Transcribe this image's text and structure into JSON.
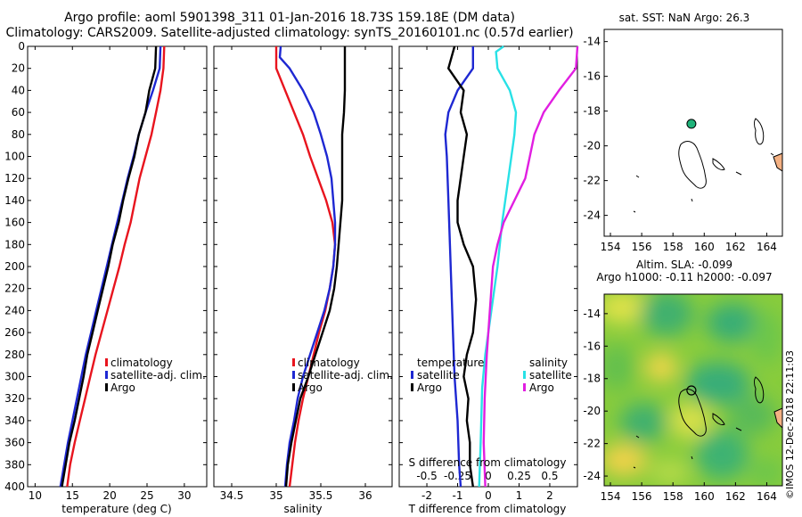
{
  "titles": {
    "line1": "Argo profile: aoml 5901398_311 01-Jan-2016 18.73S 159.18E (DM data)",
    "line2": "Climatology: CARS2009. Satellite-adjusted climatology: synTS_20160101.nc (0.57d earlier)"
  },
  "copyright": "©IMOS 12-Dec-2018 22:11:03",
  "colors": {
    "climatology": "#e8141e",
    "satellite": "#1e28d2",
    "argo": "#000000",
    "sat_salinity": "#28e1e6",
    "clim_salinity": "#e11ee1",
    "mark": "#1fb37a"
  },
  "chart_data": [
    {
      "id": "temperature",
      "type": "line",
      "xlabel": "temperature (deg C)",
      "ylabel": "",
      "xlim": [
        9,
        33
      ],
      "xticks": [
        10,
        15,
        20,
        25,
        30
      ],
      "ylim": [
        0,
        400
      ],
      "yticks": [
        0,
        20,
        40,
        60,
        80,
        100,
        120,
        140,
        160,
        180,
        200,
        220,
        240,
        260,
        280,
        300,
        320,
        340,
        360,
        380,
        400
      ],
      "legend": [
        "climatology",
        "satellite-adj. clim.",
        "Argo"
      ],
      "series": [
        {
          "name": "climatology",
          "color": "#e8141e",
          "points": [
            [
              27.3,
              0
            ],
            [
              27.2,
              20
            ],
            [
              26.8,
              40
            ],
            [
              26.2,
              60
            ],
            [
              25.6,
              80
            ],
            [
              24.8,
              100
            ],
            [
              24.0,
              120
            ],
            [
              23.4,
              140
            ],
            [
              22.8,
              160
            ],
            [
              22.0,
              180
            ],
            [
              21.3,
              200
            ],
            [
              20.5,
              220
            ],
            [
              19.7,
              240
            ],
            [
              18.9,
              260
            ],
            [
              18.1,
              280
            ],
            [
              17.4,
              300
            ],
            [
              16.7,
              320
            ],
            [
              16.0,
              340
            ],
            [
              15.3,
              360
            ],
            [
              14.7,
              380
            ],
            [
              14.3,
              400
            ]
          ]
        },
        {
          "name": "satellite-adj. clim.",
          "color": "#1e28d2",
          "points": [
            [
              26.8,
              0
            ],
            [
              26.7,
              20
            ],
            [
              25.8,
              40
            ],
            [
              24.8,
              60
            ],
            [
              23.9,
              80
            ],
            [
              23.2,
              100
            ],
            [
              22.4,
              120
            ],
            [
              21.7,
              140
            ],
            [
              21.0,
              160
            ],
            [
              20.3,
              180
            ],
            [
              19.6,
              200
            ],
            [
              18.9,
              220
            ],
            [
              18.2,
              240
            ],
            [
              17.5,
              260
            ],
            [
              16.8,
              280
            ],
            [
              16.2,
              300
            ],
            [
              15.6,
              320
            ],
            [
              15.0,
              340
            ],
            [
              14.4,
              360
            ],
            [
              13.9,
              380
            ],
            [
              13.4,
              400
            ]
          ]
        },
        {
          "name": "Argo",
          "color": "#000000",
          "points": [
            [
              26.2,
              0
            ],
            [
              26.1,
              20
            ],
            [
              25.3,
              40
            ],
            [
              24.8,
              60
            ],
            [
              23.9,
              80
            ],
            [
              23.3,
              100
            ],
            [
              22.5,
              120
            ],
            [
              21.8,
              140
            ],
            [
              21.2,
              160
            ],
            [
              20.4,
              180
            ],
            [
              19.8,
              200
            ],
            [
              19.1,
              220
            ],
            [
              18.4,
              240
            ],
            [
              17.7,
              260
            ],
            [
              17.0,
              280
            ],
            [
              16.5,
              300
            ],
            [
              15.9,
              320
            ],
            [
              15.3,
              340
            ],
            [
              14.6,
              360
            ],
            [
              14.1,
              380
            ],
            [
              13.6,
              400
            ]
          ]
        }
      ]
    },
    {
      "id": "salinity",
      "type": "line",
      "xlabel": "salinity",
      "xlim": [
        34.3,
        36.3
      ],
      "xticks": [
        34.5,
        35,
        35.5,
        36
      ],
      "xticklabels": [
        "34.5",
        "35",
        "35.5",
        "36"
      ],
      "ylim": [
        0,
        400
      ],
      "legend": [
        "climatology",
        "satellite-adj. clim.",
        "Argo"
      ],
      "series": [
        {
          "name": "climatology",
          "color": "#e8141e",
          "points": [
            [
              35.0,
              0
            ],
            [
              35.0,
              20
            ],
            [
              35.1,
              40
            ],
            [
              35.2,
              60
            ],
            [
              35.3,
              80
            ],
            [
              35.38,
              100
            ],
            [
              35.47,
              120
            ],
            [
              35.56,
              140
            ],
            [
              35.63,
              160
            ],
            [
              35.66,
              180
            ],
            [
              35.64,
              200
            ],
            [
              35.6,
              220
            ],
            [
              35.55,
              240
            ],
            [
              35.48,
              260
            ],
            [
              35.42,
              280
            ],
            [
              35.36,
              300
            ],
            [
              35.3,
              320
            ],
            [
              35.25,
              340
            ],
            [
              35.21,
              360
            ],
            [
              35.18,
              380
            ],
            [
              35.15,
              400
            ]
          ]
        },
        {
          "name": "satellite-adj. clim.",
          "color": "#1e28d2",
          "points": [
            [
              35.05,
              0
            ],
            [
              35.04,
              10
            ],
            [
              35.15,
              20
            ],
            [
              35.3,
              40
            ],
            [
              35.42,
              60
            ],
            [
              35.5,
              80
            ],
            [
              35.57,
              100
            ],
            [
              35.62,
              120
            ],
            [
              35.64,
              140
            ],
            [
              35.66,
              160
            ],
            [
              35.66,
              180
            ],
            [
              35.64,
              200
            ],
            [
              35.6,
              220
            ],
            [
              35.54,
              240
            ],
            [
              35.46,
              260
            ],
            [
              35.38,
              280
            ],
            [
              35.3,
              300
            ],
            [
              35.24,
              320
            ],
            [
              35.2,
              340
            ],
            [
              35.15,
              360
            ],
            [
              35.12,
              380
            ],
            [
              35.1,
              400
            ]
          ]
        },
        {
          "name": "Argo",
          "color": "#000000",
          "points": [
            [
              35.77,
              0
            ],
            [
              35.77,
              20
            ],
            [
              35.77,
              40
            ],
            [
              35.76,
              60
            ],
            [
              35.74,
              80
            ],
            [
              35.74,
              100
            ],
            [
              35.74,
              120
            ],
            [
              35.74,
              140
            ],
            [
              35.72,
              160
            ],
            [
              35.7,
              180
            ],
            [
              35.68,
              200
            ],
            [
              35.65,
              220
            ],
            [
              35.6,
              240
            ],
            [
              35.52,
              260
            ],
            [
              35.44,
              280
            ],
            [
              35.36,
              300
            ],
            [
              35.27,
              320
            ],
            [
              35.22,
              340
            ],
            [
              35.17,
              360
            ],
            [
              35.13,
              380
            ],
            [
              35.11,
              400
            ]
          ]
        }
      ]
    },
    {
      "id": "difference",
      "type": "line",
      "xlabel": "T difference from climatology",
      "top_xlabel": "S difference from climatology",
      "xlim": [
        -2.9,
        2.9
      ],
      "xticks": [
        -2,
        -1,
        0,
        1,
        2
      ],
      "xticklabels": [
        "-2",
        "-1",
        "0",
        "1",
        "2"
      ],
      "s_ticks": [
        -0.5,
        -0.25,
        0,
        0.25,
        0.5
      ],
      "s_ticklabels": [
        "-0.5",
        "-0.25",
        "0",
        "0.25",
        "0.5"
      ],
      "ylim": [
        0,
        400
      ],
      "legend_temperature": {
        "title": "temperature",
        "items": [
          "satellite",
          "Argo"
        ]
      },
      "legend_salinity": {
        "title": "salinity",
        "items": [
          "satellite",
          "Argo"
        ]
      },
      "series": [
        {
          "name": "T satellite",
          "color": "#1e28d2",
          "points": [
            [
              -0.5,
              0
            ],
            [
              -0.5,
              20
            ],
            [
              -1.0,
              40
            ],
            [
              -1.3,
              60
            ],
            [
              -1.4,
              80
            ],
            [
              -1.35,
              100
            ],
            [
              -1.3,
              140
            ],
            [
              -1.25,
              180
            ],
            [
              -1.2,
              220
            ],
            [
              -1.15,
              260
            ],
            [
              -1.1,
              300
            ],
            [
              -1.0,
              340
            ],
            [
              -0.95,
              380
            ],
            [
              -0.9,
              400
            ]
          ]
        },
        {
          "name": "T Argo",
          "color": "#000000",
          "points": [
            [
              -1.1,
              0
            ],
            [
              -1.3,
              20
            ],
            [
              -0.8,
              40
            ],
            [
              -0.9,
              60
            ],
            [
              -0.7,
              80
            ],
            [
              -0.8,
              100
            ],
            [
              -1.0,
              140
            ],
            [
              -1.0,
              160
            ],
            [
              -0.8,
              180
            ],
            [
              -0.5,
              200
            ],
            [
              -0.4,
              230
            ],
            [
              -0.5,
              260
            ],
            [
              -0.7,
              280
            ],
            [
              -0.8,
              300
            ],
            [
              -0.65,
              320
            ],
            [
              -0.7,
              340
            ],
            [
              -0.6,
              360
            ],
            [
              -0.6,
              380
            ],
            [
              -0.5,
              400
            ]
          ]
        },
        {
          "name": "S satellite",
          "color": "#28e1e6",
          "points": [
            [
              0.5,
              0
            ],
            [
              0.25,
              5
            ],
            [
              0.3,
              20
            ],
            [
              0.7,
              40
            ],
            [
              0.9,
              60
            ],
            [
              0.85,
              80
            ],
            [
              0.75,
              100
            ],
            [
              0.55,
              140
            ],
            [
              0.45,
              160
            ],
            [
              0.3,
              200
            ],
            [
              0.1,
              240
            ],
            [
              -0.1,
              280
            ],
            [
              -0.2,
              310
            ],
            [
              -0.25,
              360
            ],
            [
              -0.3,
              400
            ]
          ]
        },
        {
          "name": "S Argo",
          "color": "#e11ee1",
          "points": [
            [
              2.9,
              0
            ],
            [
              2.85,
              20
            ],
            [
              2.3,
              40
            ],
            [
              1.8,
              60
            ],
            [
              1.5,
              80
            ],
            [
              1.35,
              100
            ],
            [
              1.2,
              120
            ],
            [
              0.85,
              140
            ],
            [
              0.5,
              160
            ],
            [
              0.3,
              180
            ],
            [
              0.15,
              200
            ],
            [
              0.05,
              240
            ],
            [
              -0.05,
              280
            ],
            [
              -0.12,
              320
            ],
            [
              -0.15,
              360
            ],
            [
              -0.1,
              400
            ]
          ]
        }
      ]
    },
    {
      "id": "map-sst",
      "type": "scatter",
      "title": "sat. SST: NaN  Argo: 26.3",
      "xlim": [
        153.6,
        165
      ],
      "ylim": [
        -25.2,
        -13.3
      ],
      "xticks": [
        154,
        156,
        158,
        160,
        162,
        164
      ],
      "yticks": [
        -14,
        -16,
        -18,
        -20,
        -22,
        -24
      ],
      "marker": {
        "lon": 159.18,
        "lat": -18.73
      }
    },
    {
      "id": "map-sla",
      "type": "heatmap",
      "title1": "Altim. SLA: -0.099",
      "title2": "Argo h1000: -0.11  h2000: -0.097",
      "xlim": [
        153.6,
        165
      ],
      "ylim": [
        -24.6,
        -12.8
      ],
      "xticks": [
        154,
        156,
        158,
        160,
        162,
        164
      ],
      "yticks": [
        -14,
        -16,
        -18,
        -20,
        -22,
        -24
      ],
      "marker": {
        "lon": 159.18,
        "lat": -18.73
      }
    }
  ]
}
